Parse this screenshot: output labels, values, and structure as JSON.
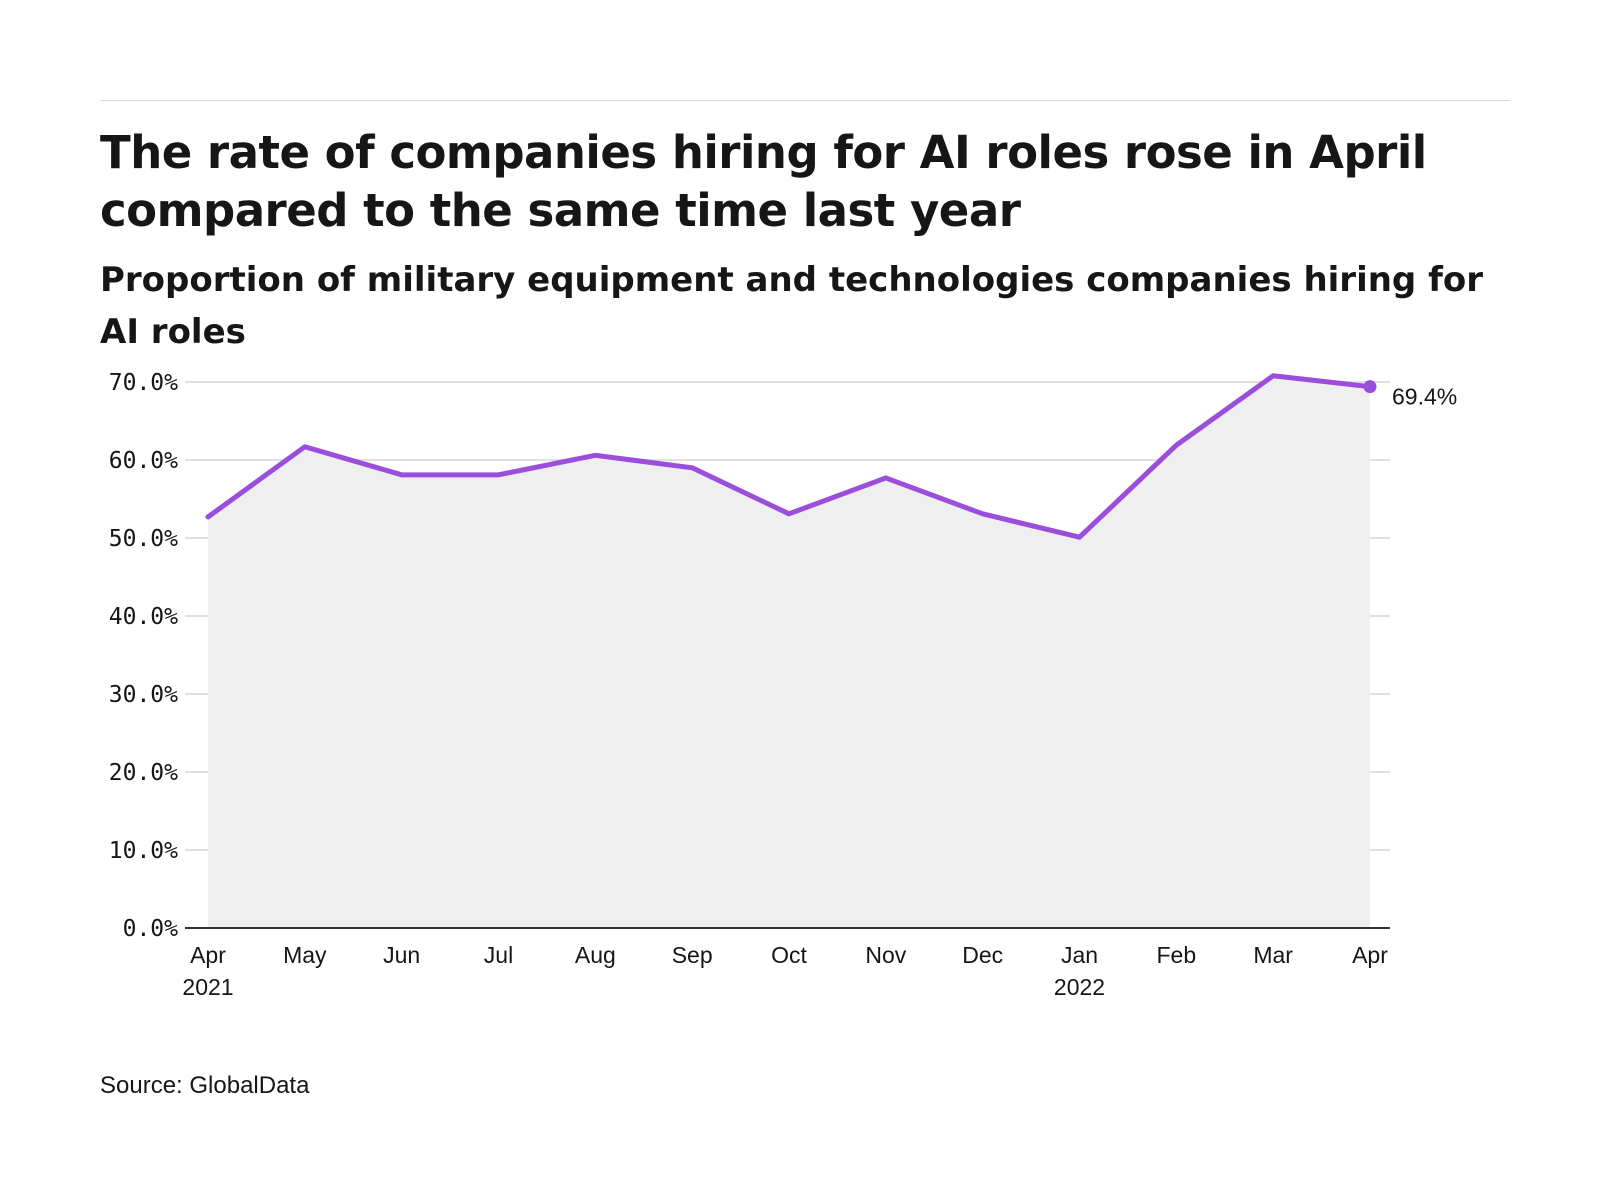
{
  "header": {
    "title": "The rate of companies hiring for AI roles rose in April compared to the same time last year",
    "subtitle": "Proportion of military equipment and technologies companies hiring for AI roles"
  },
  "footer": {
    "source": "Source: GlobalData"
  },
  "colors": {
    "line": "#9b4ddb",
    "area": "#efefef",
    "grid": "#e0e0e0",
    "axis": "#333333"
  },
  "chart_data": {
    "type": "area",
    "title": "The rate of companies hiring for AI roles rose in April compared to the same time last year",
    "subtitle": "Proportion of military equipment and technologies companies hiring for AI roles",
    "xlabel": "",
    "ylabel": "",
    "categories": [
      "Apr 2021",
      "May",
      "Jun",
      "Jul",
      "Aug",
      "Sep",
      "Oct",
      "Nov",
      "Dec",
      "Jan 2022",
      "Feb",
      "Mar",
      "Apr"
    ],
    "x_tick_labels": [
      [
        "Apr",
        "2021"
      ],
      [
        "May"
      ],
      [
        "Jun"
      ],
      [
        "Jul"
      ],
      [
        "Aug"
      ],
      [
        "Sep"
      ],
      [
        "Oct"
      ],
      [
        "Nov"
      ],
      [
        "Dec"
      ],
      [
        "Jan",
        "2022"
      ],
      [
        "Feb"
      ],
      [
        "Mar"
      ],
      [
        "Apr"
      ]
    ],
    "series": [
      {
        "name": "Proportion hiring for AI roles",
        "values": [
          52.7,
          61.7,
          58.1,
          58.1,
          60.6,
          59.0,
          53.1,
          57.7,
          53.1,
          50.1,
          61.9,
          70.8,
          69.4
        ]
      }
    ],
    "ylim": [
      0,
      70
    ],
    "y_ticks": [
      0,
      10,
      20,
      30,
      40,
      50,
      60,
      70
    ],
    "y_tick_labels": [
      "0.0%",
      "10.0%",
      "20.0%",
      "30.0%",
      "40.0%",
      "50.0%",
      "60.0%",
      "70.0%"
    ],
    "grid": true,
    "annotations": [
      {
        "category": "Apr",
        "text": "69.4%"
      }
    ],
    "source": "Source: GlobalData"
  }
}
